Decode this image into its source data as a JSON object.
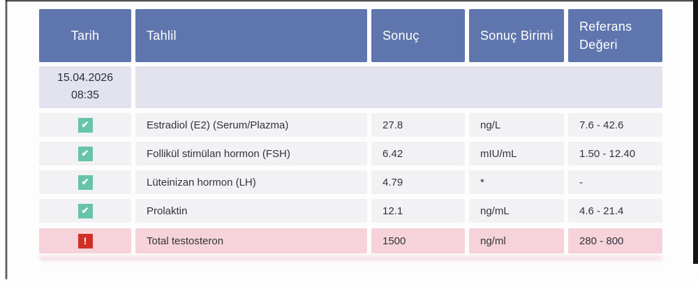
{
  "colors": {
    "header_bg": "#5f75ad",
    "header_text": "#ffffff",
    "date_row_bg": "#e2e3ee",
    "row_bg": "#f2f2f4",
    "alert_row_bg": "#f6d3da",
    "body_text": "#32323a",
    "ok_icon": "#67c3a9",
    "alert_icon": "#d02f28"
  },
  "icons": {
    "check_glyph": "✔",
    "alert_glyph": "!"
  },
  "table": {
    "headers": [
      "Tarih",
      "Tahlil",
      "Sonuç",
      "Sonuç Birimi",
      "Referans Değeri"
    ],
    "date_group": {
      "date": "15.04.2026",
      "time": "08:35"
    },
    "rows": [
      {
        "status": "ok",
        "test": "Estradiol (E2) (Serum/Plazma)",
        "result": "27.8",
        "unit": "ng/L",
        "reference": "7.6 - 42.6"
      },
      {
        "status": "ok",
        "test": "Follikül stimülan hormon (FSH)",
        "result": "6.42",
        "unit": "mIU/mL",
        "reference": "1.50 - 12.40"
      },
      {
        "status": "ok",
        "test": "Lüteinizan hormon (LH)",
        "result": "4.79",
        "unit": "*",
        "reference": "-"
      },
      {
        "status": "ok",
        "test": "Prolaktin",
        "result": "12.1",
        "unit": "ng/mL",
        "reference": "4.6 - 21.4"
      },
      {
        "status": "alert",
        "test": "Total testosteron",
        "result": "1500",
        "unit": "ng/ml",
        "reference": "280 - 800"
      }
    ]
  }
}
